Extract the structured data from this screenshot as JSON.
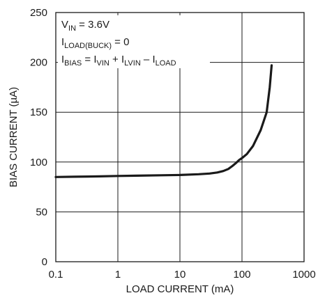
{
  "chart_data": {
    "type": "line",
    "xscale": "log",
    "xlim": [
      0.1,
      1000
    ],
    "ylim": [
      0,
      250
    ],
    "grid": true,
    "xlabel": "LOAD CURRENT (mA)",
    "ylabel": "BIAS CURRENT (µA)",
    "xticks": [
      "0.1",
      "1",
      "10",
      "100",
      "1000"
    ],
    "yticks": [
      "0",
      "50",
      "100",
      "150",
      "200",
      "250"
    ],
    "annotations": {
      "line1": {
        "main": "V",
        "sub": "IN",
        "rest": " = 3.6V"
      },
      "line2": {
        "main": "I",
        "sub": "LOAD(BUCK)",
        "rest": " = 0"
      },
      "line3": {
        "i1": "I",
        "s1": "BIAS",
        "t1": " = I",
        "s2": "VIN",
        "t2": " + I",
        "s3": "LVIN",
        "t3": " – I",
        "s4": "LOAD"
      }
    },
    "series": [
      {
        "x": [
          0.1,
          0.2,
          0.5,
          1,
          2,
          5,
          10,
          20,
          30,
          40,
          50,
          60,
          70,
          80,
          90,
          100,
          120,
          150,
          200,
          250,
          280,
          300
        ],
        "y": [
          85,
          85.3,
          85.6,
          86,
          86.3,
          86.7,
          87,
          87.8,
          88.5,
          89.5,
          91,
          93,
          96,
          99,
          102,
          104,
          108,
          116,
          132,
          150,
          175,
          197
        ]
      }
    ]
  }
}
